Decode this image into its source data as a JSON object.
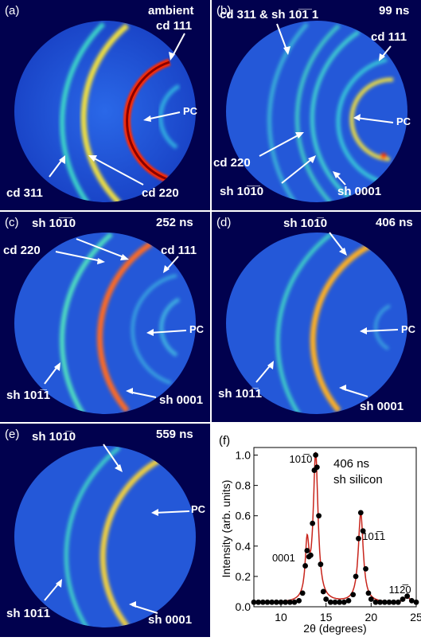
{
  "panels": [
    {
      "label": "(a)",
      "time": "ambient",
      "annotations": [
        "cd 111",
        "PC",
        "cd 311",
        "cd 220"
      ]
    },
    {
      "label": "(b)",
      "time": "99 ns",
      "annotations": [
        "cd 311 & sh 10̅1̅ 1",
        "cd 111",
        "PC",
        "cd 220",
        "sh 10̅1̅0",
        "sh 0001"
      ]
    },
    {
      "label": "(c)",
      "time": "252 ns",
      "annotations": [
        "sh 10̅1̅0",
        "cd 220",
        "cd 111",
        "PC",
        "sh 101̅1",
        "sh 0001"
      ]
    },
    {
      "label": "(d)",
      "time": "406 ns",
      "annotations": [
        "sh 101̅0",
        "PC",
        "sh 101̅1",
        "sh 0001"
      ]
    },
    {
      "label": "(e)",
      "time": "559 ns",
      "annotations": [
        "sh 101̅0",
        "PC",
        "sh 101̅1",
        "sh 0001"
      ]
    }
  ],
  "colors": {
    "panel_bg": "#01014e",
    "disk": "#1b4fd6",
    "ring_hot": "#ff2a00",
    "ring_warm": "#f0e040",
    "ring_cool": "#3cd6c8",
    "fit_line": "#c8241b"
  },
  "chart_data": {
    "type": "scatter",
    "panel_label": "(f)",
    "annotation": [
      "406 ns",
      "sh silicon"
    ],
    "xlabel": "2θ (degrees)",
    "ylabel": "Intensity (arb. units)",
    "xlim": [
      7,
      25
    ],
    "ylim": [
      0,
      1.05
    ],
    "xticks": [
      10,
      15,
      20,
      25
    ],
    "yticks": [
      0.0,
      0.2,
      0.4,
      0.6,
      0.8,
      1.0
    ],
    "grid": false,
    "peak_labels": [
      {
        "text": "0001",
        "x": 10.3,
        "y": 0.3
      },
      {
        "text": "101̅0",
        "x": 12.2,
        "y": 0.95
      },
      {
        "text": "101̅1",
        "x": 20.3,
        "y": 0.44
      },
      {
        "text": "112̅0",
        "x": 23.2,
        "y": 0.09
      }
    ],
    "peaks": [
      {
        "x": 12.9,
        "y": 0.35,
        "w": 0.25
      },
      {
        "x": 13.85,
        "y": 0.97,
        "w": 0.32
      },
      {
        "x": 18.85,
        "y": 0.59,
        "w": 0.33
      },
      {
        "x": 24.0,
        "y": 0.04,
        "w": 0.35
      }
    ],
    "baseline": 0.025,
    "series": [
      {
        "x": 7.0,
        "y": 0.03
      },
      {
        "x": 7.5,
        "y": 0.03
      },
      {
        "x": 8.0,
        "y": 0.03
      },
      {
        "x": 8.5,
        "y": 0.03
      },
      {
        "x": 9.0,
        "y": 0.03
      },
      {
        "x": 9.5,
        "y": 0.03
      },
      {
        "x": 10.0,
        "y": 0.03
      },
      {
        "x": 10.5,
        "y": 0.03
      },
      {
        "x": 11.0,
        "y": 0.03
      },
      {
        "x": 11.5,
        "y": 0.03
      },
      {
        "x": 12.0,
        "y": 0.04
      },
      {
        "x": 12.4,
        "y": 0.09
      },
      {
        "x": 12.7,
        "y": 0.27
      },
      {
        "x": 12.9,
        "y": 0.37
      },
      {
        "x": 13.1,
        "y": 0.33
      },
      {
        "x": 13.3,
        "y": 0.34
      },
      {
        "x": 13.5,
        "y": 0.55
      },
      {
        "x": 13.7,
        "y": 0.9
      },
      {
        "x": 13.85,
        "y": 1.0
      },
      {
        "x": 14.0,
        "y": 0.92
      },
      {
        "x": 14.2,
        "y": 0.6
      },
      {
        "x": 14.4,
        "y": 0.28
      },
      {
        "x": 14.7,
        "y": 0.1
      },
      {
        "x": 15.0,
        "y": 0.05
      },
      {
        "x": 15.5,
        "y": 0.03
      },
      {
        "x": 16.0,
        "y": 0.03
      },
      {
        "x": 16.5,
        "y": 0.03
      },
      {
        "x": 17.0,
        "y": 0.03
      },
      {
        "x": 17.5,
        "y": 0.04
      },
      {
        "x": 18.0,
        "y": 0.08
      },
      {
        "x": 18.3,
        "y": 0.2
      },
      {
        "x": 18.6,
        "y": 0.45
      },
      {
        "x": 18.85,
        "y": 0.62
      },
      {
        "x": 19.1,
        "y": 0.5
      },
      {
        "x": 19.4,
        "y": 0.25
      },
      {
        "x": 19.7,
        "y": 0.09
      },
      {
        "x": 20.0,
        "y": 0.05
      },
      {
        "x": 20.5,
        "y": 0.03
      },
      {
        "x": 21.0,
        "y": 0.03
      },
      {
        "x": 21.5,
        "y": 0.03
      },
      {
        "x": 22.0,
        "y": 0.03
      },
      {
        "x": 22.5,
        "y": 0.03
      },
      {
        "x": 23.0,
        "y": 0.03
      },
      {
        "x": 23.5,
        "y": 0.05
      },
      {
        "x": 24.0,
        "y": 0.07
      },
      {
        "x": 24.5,
        "y": 0.04
      },
      {
        "x": 25.0,
        "y": 0.03
      }
    ]
  }
}
